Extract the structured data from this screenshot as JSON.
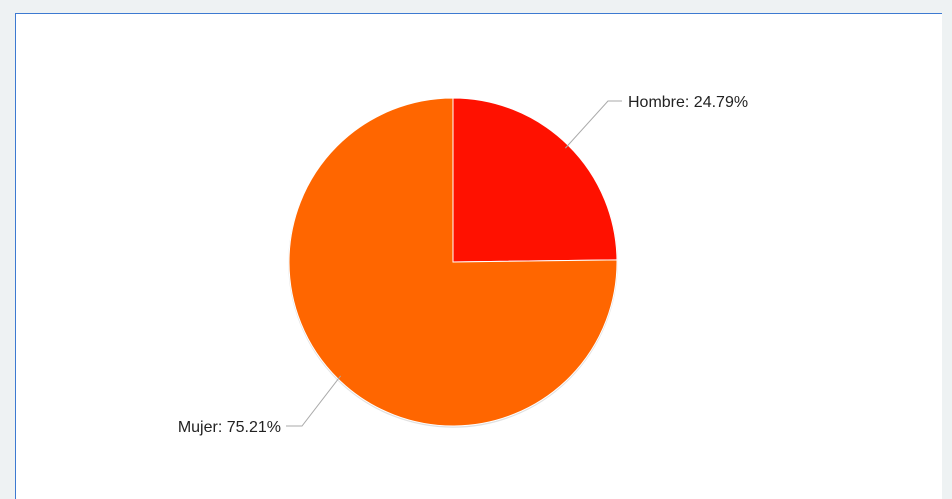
{
  "chart_data": {
    "type": "pie",
    "title": "",
    "slices": [
      {
        "name": "Hombre",
        "value": 24.79,
        "label": "Hombre: 24.79%",
        "color": "#ff1100"
      },
      {
        "name": "Mujer",
        "value": 75.21,
        "label": "Mujer: 75.21%",
        "color": "#ff6600"
      }
    ],
    "legend": "none",
    "colors": {
      "frame_border": "#3d7ad1",
      "leader_line": "#aaaaaa"
    }
  }
}
